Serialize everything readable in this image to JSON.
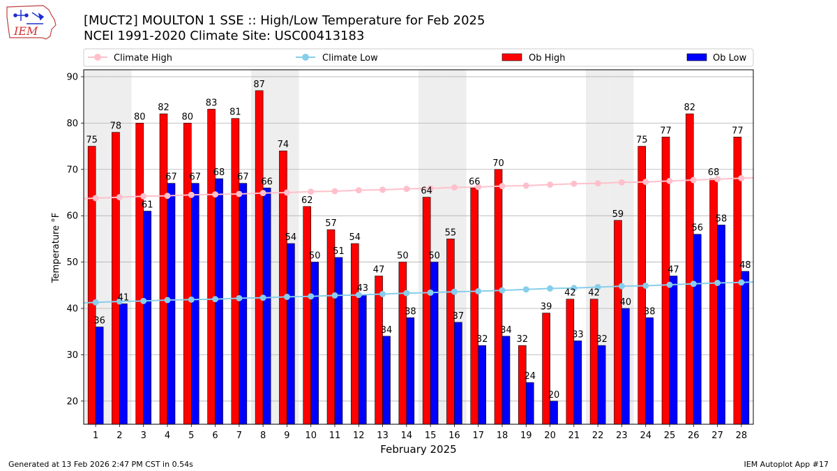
{
  "header": {
    "logo_text": "IEM",
    "title_line1": "[MUCT2] MOULTON 1 SSE :: High/Low Temperature for Feb 2025",
    "title_line2": "NCEI 1991-2020 Climate Site: USC00413183"
  },
  "footer": {
    "left": "Generated at 13 Feb 2026 2:47 PM CST in 0.54s",
    "right": "IEM Autoplot App #17"
  },
  "chart_data": {
    "type": "bar",
    "xlabel": "February 2025",
    "ylabel": "Temperature °F",
    "ylim": [
      15,
      91.5
    ],
    "yticks": [
      20,
      30,
      40,
      50,
      60,
      70,
      80,
      90
    ],
    "categories": [
      "1",
      "2",
      "3",
      "4",
      "5",
      "6",
      "7",
      "8",
      "9",
      "10",
      "11",
      "12",
      "13",
      "14",
      "15",
      "16",
      "17",
      "18",
      "19",
      "20",
      "21",
      "22",
      "23",
      "24",
      "25",
      "26",
      "27",
      "28"
    ],
    "weekend_days": [
      1,
      2,
      8,
      9,
      15,
      16,
      22,
      23
    ],
    "grid": "horizontal",
    "legend_position": "top",
    "series": [
      {
        "name": "Ob High",
        "kind": "bar",
        "color": "#ff0000",
        "values": [
          75,
          78,
          80,
          82,
          80,
          83,
          81,
          87,
          74,
          62,
          57,
          54,
          47,
          50,
          64,
          55,
          66,
          70,
          32,
          39,
          42,
          42,
          59,
          75,
          77,
          82,
          68,
          77
        ]
      },
      {
        "name": "Ob Low",
        "kind": "bar",
        "color": "#0000ff",
        "values": [
          36,
          41,
          61,
          67,
          67,
          68,
          67,
          66,
          54,
          50,
          51,
          43,
          34,
          38,
          50,
          37,
          32,
          34,
          24,
          20,
          33,
          32,
          40,
          38,
          47,
          56,
          58,
          48
        ]
      },
      {
        "name": "Climate High",
        "kind": "line",
        "color": "#ffc0cb",
        "values": [
          63.8,
          64.0,
          64.2,
          64.3,
          64.5,
          64.6,
          64.7,
          64.9,
          65.0,
          65.2,
          65.3,
          65.5,
          65.6,
          65.8,
          65.9,
          66.1,
          66.2,
          66.4,
          66.5,
          66.7,
          66.9,
          67.0,
          67.2,
          67.3,
          67.5,
          67.7,
          67.9,
          68.1
        ]
      },
      {
        "name": "Climate Low",
        "kind": "line",
        "color": "#87ceeb",
        "values": [
          41.3,
          41.5,
          41.6,
          41.8,
          41.9,
          42.0,
          42.2,
          42.3,
          42.5,
          42.6,
          42.8,
          42.9,
          43.1,
          43.3,
          43.4,
          43.6,
          43.7,
          43.9,
          44.1,
          44.3,
          44.4,
          44.6,
          44.8,
          44.9,
          45.1,
          45.3,
          45.5,
          45.6
        ]
      }
    ]
  }
}
